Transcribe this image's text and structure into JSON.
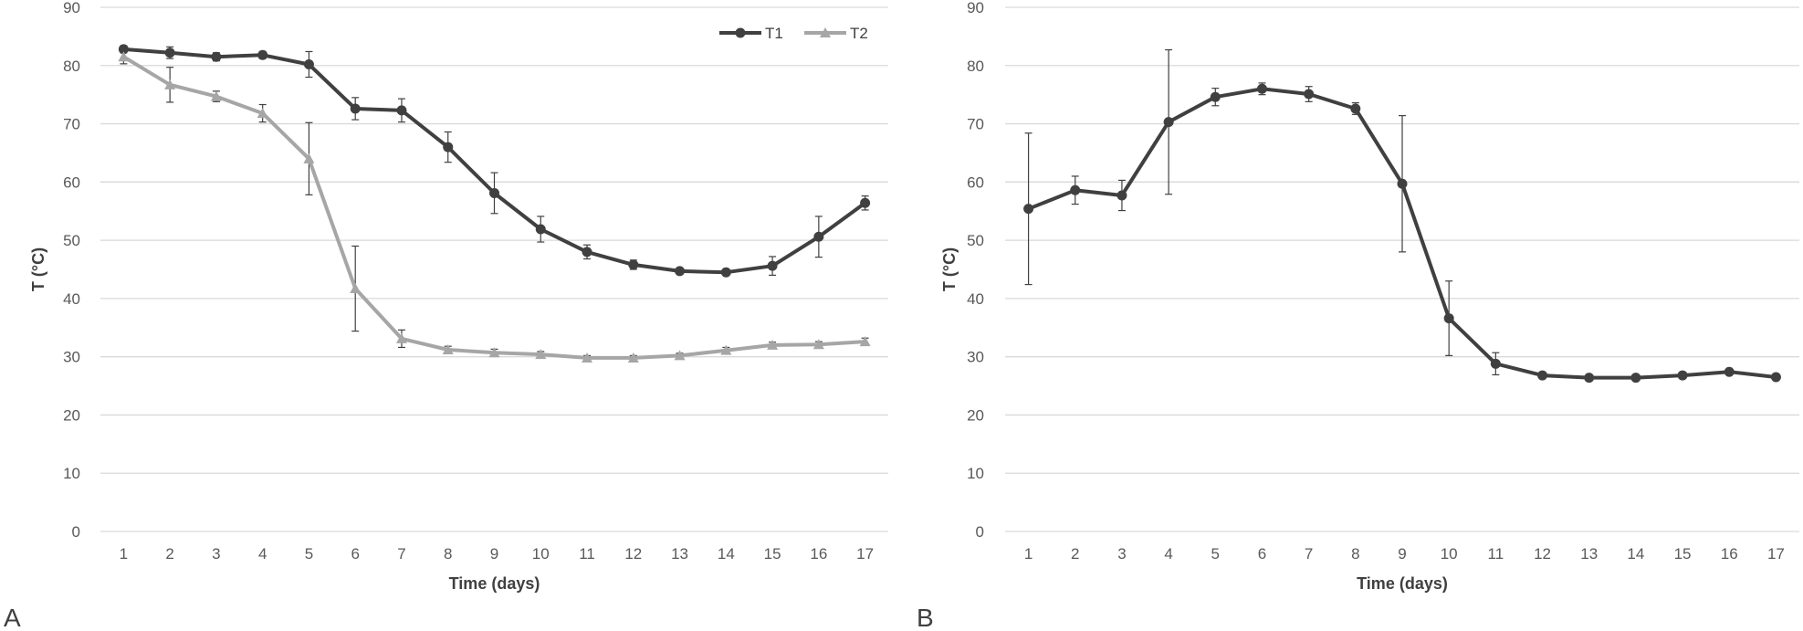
{
  "chart_data": [
    {
      "type": "line",
      "panel_label": "A",
      "xlabel": "Time (days)",
      "ylabel": "T (°C)",
      "ylim": [
        0,
        90
      ],
      "yticks": [
        0,
        10,
        20,
        30,
        40,
        50,
        60,
        70,
        80,
        90
      ],
      "categories": [
        "1",
        "2",
        "3",
        "4",
        "5",
        "6",
        "7",
        "8",
        "9",
        "10",
        "11",
        "12",
        "13",
        "14",
        "15",
        "16",
        "17"
      ],
      "grid": "horizontal",
      "legend": "top-right",
      "series": [
        {
          "name": "T1",
          "color": "#404040",
          "marker": "circle",
          "values": [
            82.8,
            82.2,
            81.5,
            81.8,
            80.2,
            72.6,
            72.3,
            66.0,
            58.1,
            51.9,
            48.0,
            45.8,
            44.7,
            44.5,
            45.6,
            50.6,
            56.4
          ],
          "errors": [
            0.6,
            1.0,
            0.7,
            0.6,
            2.2,
            1.9,
            2.0,
            2.6,
            3.5,
            2.2,
            1.2,
            0.8,
            0.4,
            0.4,
            1.6,
            3.5,
            1.2
          ]
        },
        {
          "name": "T2",
          "color": "#a6a6a6",
          "marker": "triangle",
          "values": [
            81.5,
            76.7,
            74.7,
            71.8,
            64.0,
            41.7,
            33.1,
            31.2,
            30.7,
            30.4,
            29.8,
            29.8,
            30.2,
            31.1,
            32.0,
            32.1,
            32.6
          ],
          "errors": [
            1.2,
            3.0,
            0.9,
            1.5,
            6.2,
            7.3,
            1.5,
            0.6,
            0.6,
            0.5,
            0.4,
            0.4,
            0.4,
            0.5,
            0.5,
            0.5,
            0.6
          ]
        }
      ]
    },
    {
      "type": "line",
      "panel_label": "B",
      "xlabel": "Time (days)",
      "ylabel": "T (°C)",
      "ylim": [
        0,
        90
      ],
      "yticks": [
        0,
        10,
        20,
        30,
        40,
        50,
        60,
        70,
        80,
        90
      ],
      "categories": [
        "1",
        "2",
        "3",
        "4",
        "5",
        "6",
        "7",
        "8",
        "9",
        "10",
        "11",
        "12",
        "13",
        "14",
        "15",
        "16",
        "17"
      ],
      "grid": "horizontal",
      "series": [
        {
          "color": "#404040",
          "marker": "circle",
          "values": [
            55.4,
            58.6,
            57.7,
            70.3,
            74.6,
            76.0,
            75.1,
            72.6,
            59.7,
            36.6,
            28.8,
            26.8,
            26.4,
            26.4,
            26.8,
            27.4,
            26.5
          ],
          "errors": [
            13.0,
            2.4,
            2.6,
            12.4,
            1.5,
            1.0,
            1.3,
            1.0,
            11.7,
            6.4,
            1.9,
            0.3,
            0.3,
            0.3,
            0.3,
            0.3,
            0.3
          ]
        }
      ]
    }
  ]
}
